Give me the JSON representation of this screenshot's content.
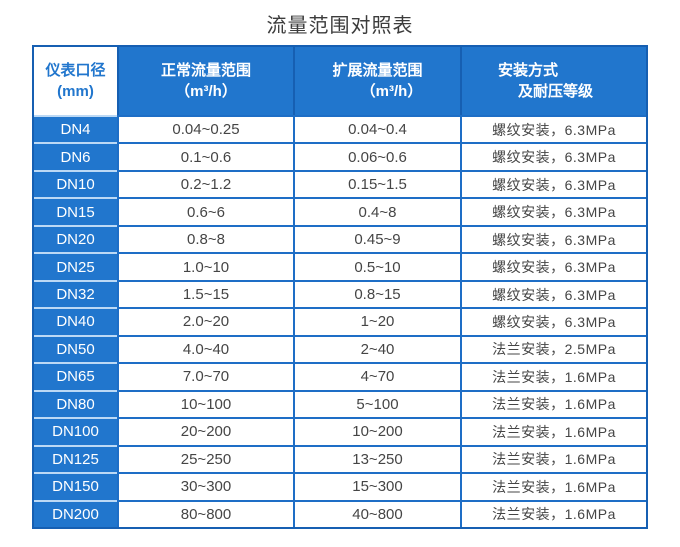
{
  "page": {
    "title": "流量范围对照表"
  },
  "colors": {
    "accent_blue": "#2176cd",
    "dark_border_blue": "#165fb2",
    "light_row_separator": "#bcd9f5",
    "cell_border_blue": "#1e6ec6",
    "data_text": "#454545",
    "title_text": "#3c3c3c",
    "header_text": "#ffffff"
  },
  "chart_data": {
    "type": "table",
    "title": "流量范围对照表",
    "columns": [
      {
        "line1": "仪表口径",
        "line2": "(mm)"
      },
      {
        "line1": "正常流量范围",
        "line2": "（m³/h）"
      },
      {
        "line1": "扩展流量范围",
        "line2": "（m³/h）"
      },
      {
        "line1": "安装方式",
        "line2": "及耐压等级"
      }
    ],
    "rows": [
      [
        "DN4",
        "0.04~0.25",
        "0.04~0.4",
        "螺纹安装，6.3MPa"
      ],
      [
        "DN6",
        "0.1~0.6",
        "0.06~0.6",
        "螺纹安装，6.3MPa"
      ],
      [
        "DN10",
        "0.2~1.2",
        "0.15~1.5",
        "螺纹安装，6.3MPa"
      ],
      [
        "DN15",
        "0.6~6",
        "0.4~8",
        "螺纹安装，6.3MPa"
      ],
      [
        "DN20",
        "0.8~8",
        "0.45~9",
        "螺纹安装，6.3MPa"
      ],
      [
        "DN25",
        "1.0~10",
        "0.5~10",
        "螺纹安装，6.3MPa"
      ],
      [
        "DN32",
        "1.5~15",
        "0.8~15",
        "螺纹安装，6.3MPa"
      ],
      [
        "DN40",
        "2.0~20",
        "1~20",
        "螺纹安装，6.3MPa"
      ],
      [
        "DN50",
        "4.0~40",
        "2~40",
        "法兰安装，2.5MPa"
      ],
      [
        "DN65",
        "7.0~70",
        "4~70",
        "法兰安装，1.6MPa"
      ],
      [
        "DN80",
        "10~100",
        "5~100",
        "法兰安装，1.6MPa"
      ],
      [
        "DN100",
        "20~200",
        "10~200",
        "法兰安装，1.6MPa"
      ],
      [
        "DN125",
        "25~250",
        "13~250",
        "法兰安装，1.6MPa"
      ],
      [
        "DN150",
        "30~300",
        "15~300",
        "法兰安装，1.6MPa"
      ],
      [
        "DN200",
        "80~800",
        "40~800",
        "法兰安装，1.6MPa"
      ]
    ]
  }
}
